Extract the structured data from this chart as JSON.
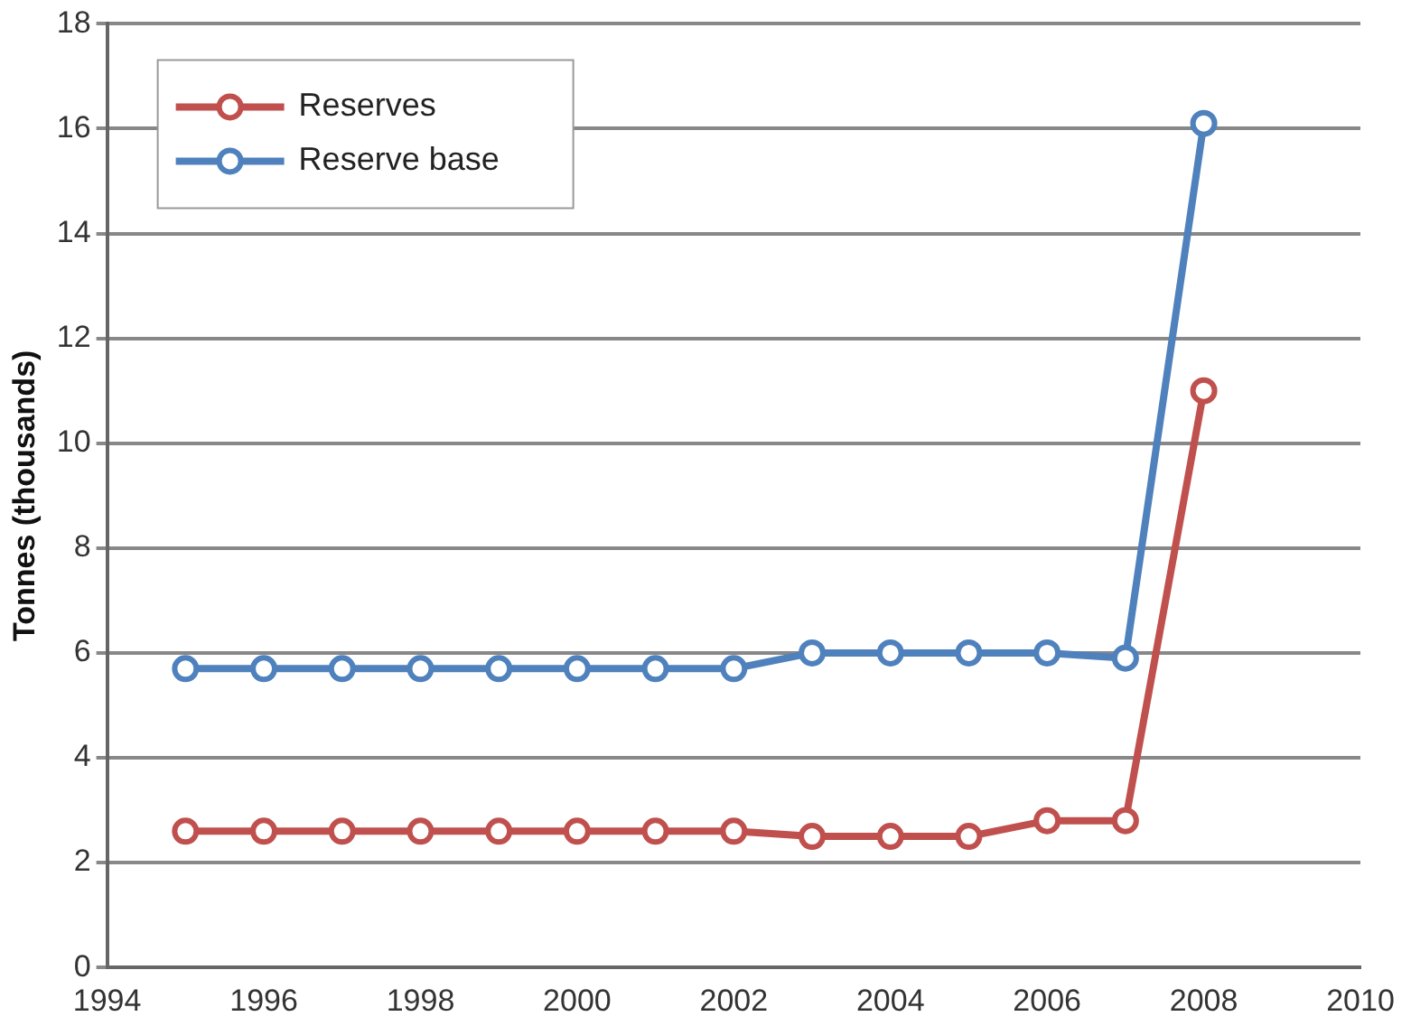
{
  "chart_data": {
    "type": "line",
    "ylabel": "Tonnes (thousands)",
    "x": [
      1995,
      1996,
      1997,
      1998,
      1999,
      2000,
      2001,
      2002,
      2003,
      2004,
      2005,
      2006,
      2007,
      2008
    ],
    "series": [
      {
        "name": "Reserves",
        "color": "#c0504d",
        "values": [
          2.6,
          2.6,
          2.6,
          2.6,
          2.6,
          2.6,
          2.6,
          2.6,
          2.5,
          2.5,
          2.5,
          2.8,
          2.8,
          11.0
        ]
      },
      {
        "name": "Reserve base",
        "color": "#4f81bd",
        "values": [
          5.7,
          5.7,
          5.7,
          5.7,
          5.7,
          5.7,
          5.7,
          5.7,
          6.0,
          6.0,
          6.0,
          6.0,
          5.9,
          16.1
        ]
      }
    ],
    "xlim": [
      1994,
      2010
    ],
    "xticks": [
      1994,
      1996,
      1998,
      2000,
      2002,
      2004,
      2006,
      2008,
      2010
    ],
    "ylim": [
      0,
      18
    ],
    "yticks": [
      0,
      2,
      4,
      6,
      8,
      10,
      12,
      14,
      16,
      18
    ],
    "grid": "y",
    "legend": "top left",
    "marker": "circle",
    "line_style": "solid"
  }
}
